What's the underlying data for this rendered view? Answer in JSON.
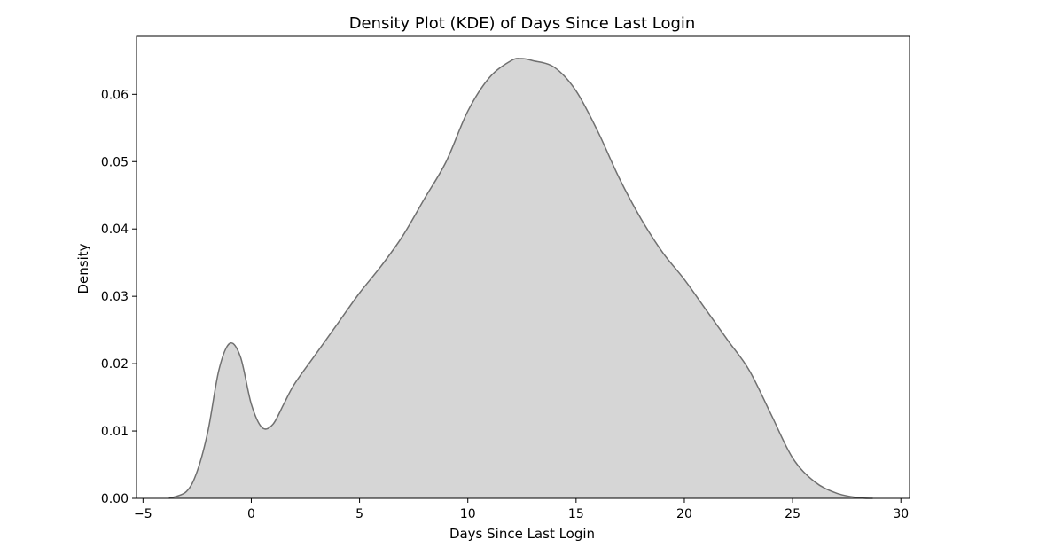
{
  "chart_data": {
    "type": "area",
    "title": "Density Plot (KDE) of Days Since Last Login",
    "xlabel": "Days Since Last Login",
    "ylabel": "Density",
    "xlim": [
      -5.3,
      30.4
    ],
    "ylim": [
      0,
      0.0686
    ],
    "xticks": [
      -5,
      0,
      5,
      10,
      15,
      20,
      25,
      30
    ],
    "xtick_labels": [
      "−5",
      "0",
      "5",
      "10",
      "15",
      "20",
      "25",
      "30"
    ],
    "yticks": [
      0,
      0.01,
      0.02,
      0.03,
      0.04,
      0.05,
      0.06
    ],
    "ytick_labels": [
      "0.00",
      "0.01",
      "0.02",
      "0.03",
      "0.04",
      "0.05",
      "0.06"
    ],
    "grid": false,
    "series": [
      {
        "fill_color": "#d6d6d6",
        "line_color": "#707070",
        "x": [
          -3.8,
          -3.0,
          -2.5,
          -2.0,
          -1.5,
          -1.0,
          -0.5,
          0.0,
          0.5,
          1.0,
          1.5,
          2.0,
          3.0,
          4.0,
          5.0,
          6.0,
          7.0,
          8.0,
          9.0,
          10.0,
          11.0,
          12.0,
          12.5,
          13.0,
          14.0,
          15.0,
          16.0,
          17.0,
          18.0,
          19.0,
          20.0,
          21.0,
          22.0,
          23.0,
          24.0,
          25.0,
          26.0,
          27.0,
          28.0,
          28.7
        ],
        "y": [
          0.0,
          0.001,
          0.004,
          0.01,
          0.019,
          0.023,
          0.021,
          0.014,
          0.0105,
          0.011,
          0.014,
          0.017,
          0.0215,
          0.026,
          0.0305,
          0.0345,
          0.039,
          0.0445,
          0.05,
          0.0575,
          0.0625,
          0.065,
          0.0653,
          0.065,
          0.064,
          0.0605,
          0.0545,
          0.0475,
          0.0415,
          0.0365,
          0.0325,
          0.028,
          0.0235,
          0.019,
          0.0125,
          0.006,
          0.0025,
          0.0008,
          0.0001,
          0.0
        ]
      }
    ]
  }
}
